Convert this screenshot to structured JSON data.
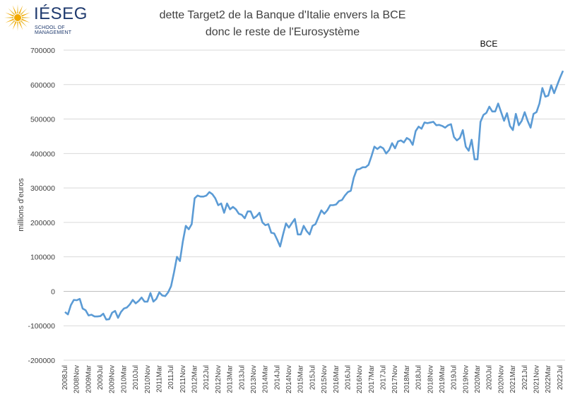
{
  "logo": {
    "name": "IÉSEG",
    "subtitle": "SCHOOL OF MANAGEMENT"
  },
  "colors": {
    "line": "#5B9BD5",
    "grid": "#d9d9d9",
    "axis": "#bfbfbf",
    "logo_primary": "#1f3a6e",
    "logo_accent": "#f2a900"
  },
  "chart_data": {
    "type": "line",
    "title_lines": [
      "dette Target2 de la Banque d'Italie envers la BCE",
      "donc le reste de l'Eurosystème"
    ],
    "xlabel": "",
    "ylabel": "millions d'euros",
    "ylim": [
      -200000,
      700000
    ],
    "yticks": [
      -200000,
      -100000,
      0,
      100000,
      200000,
      300000,
      400000,
      500000,
      600000,
      700000
    ],
    "ytick_labels": [
      "-200000",
      "-100000",
      "0",
      "100000",
      "200000",
      "300000",
      "400000",
      "500000",
      "600000",
      "700000"
    ],
    "grid": true,
    "annotation": "BCE",
    "x_start": "2008Jul",
    "x_labels": [
      "2008Jul",
      "2008Nov",
      "2009Mar",
      "2009Jul",
      "2009Nov",
      "2010Mar",
      "2010Jul",
      "2010Nov",
      "2011Mar",
      "2011Jul",
      "2011Nov",
      "2012Mar",
      "2012Jul",
      "2012Nov",
      "2013Mar",
      "2013Jul",
      "2013Nov",
      "2014Mar",
      "2014Jul",
      "2014Nov",
      "2015Mar",
      "2015Jul",
      "2015Nov",
      "2016Mar",
      "2016Jul",
      "2016Nov",
      "2017Mar",
      "2017Jul",
      "2017Nov",
      "2018Mar",
      "2018Jul",
      "2018Nov",
      "2019Mar",
      "2019Jul",
      "2019Nov",
      "2020Mar",
      "2020Jul",
      "2020Nov",
      "2021Mar",
      "2021Jul",
      "2021Nov",
      "2022Mar",
      "2022Jul"
    ],
    "series": [
      {
        "values": [
          -60000,
          -67000,
          -40000,
          -25000,
          -26000,
          -22000,
          -50000,
          -55000,
          -70000,
          -68000,
          -73000,
          -73000,
          -72000,
          -65000,
          -82000,
          -81000,
          -62000,
          -57000,
          -77000,
          -60000,
          -50000,
          -47000,
          -38000,
          -25000,
          -35000,
          -28000,
          -18000,
          -30000,
          -30000,
          -5000,
          -30000,
          -22000,
          -3000,
          -12000,
          -14000,
          -3000,
          15000,
          55000,
          100000,
          88000,
          145000,
          190000,
          180000,
          195000,
          270000,
          278000,
          275000,
          275000,
          278000,
          288000,
          282000,
          270000,
          250000,
          255000,
          228000,
          255000,
          238000,
          245000,
          238000,
          225000,
          222000,
          212000,
          232000,
          232000,
          212000,
          218000,
          228000,
          200000,
          192000,
          195000,
          170000,
          168000,
          150000,
          130000,
          165000,
          197000,
          185000,
          198000,
          210000,
          165000,
          165000,
          190000,
          175000,
          165000,
          190000,
          195000,
          215000,
          235000,
          225000,
          235000,
          250000,
          250000,
          252000,
          262000,
          265000,
          278000,
          288000,
          292000,
          330000,
          353000,
          355000,
          360000,
          360000,
          367000,
          392000,
          420000,
          413000,
          420000,
          415000,
          400000,
          410000,
          430000,
          415000,
          435000,
          438000,
          432000,
          445000,
          440000,
          425000,
          465000,
          478000,
          472000,
          490000,
          488000,
          490000,
          492000,
          482000,
          483000,
          480000,
          475000,
          482000,
          485000,
          448000,
          438000,
          445000,
          468000,
          420000,
          408000,
          440000,
          383000,
          383000,
          492000,
          512000,
          518000,
          536000,
          522000,
          522000,
          545000,
          520000,
          495000,
          517000,
          480000,
          468000,
          515000,
          482000,
          495000,
          520000,
          495000,
          475000,
          515000,
          520000,
          545000,
          590000,
          565000,
          568000,
          598000,
          575000,
          598000,
          620000,
          640000
        ]
      }
    ]
  }
}
